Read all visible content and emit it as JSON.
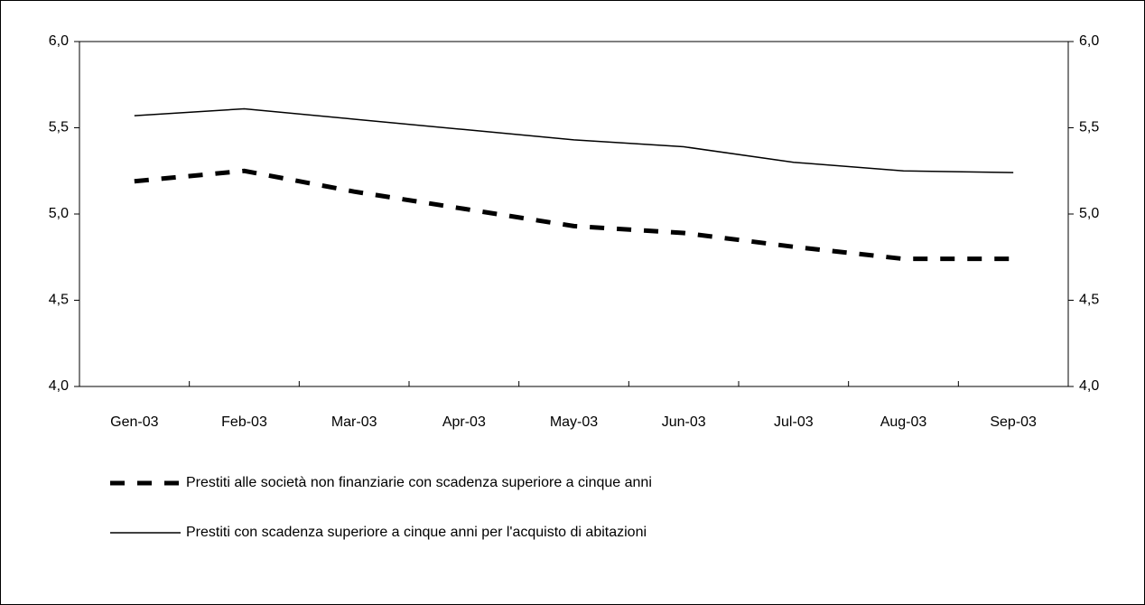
{
  "chart_data": {
    "type": "line",
    "categories": [
      "Gen-03",
      "Feb-03",
      "Mar-03",
      "Apr-03",
      "May-03",
      "Jun-03",
      "Jul-03",
      "Aug-03",
      "Sep-03"
    ],
    "series": [
      {
        "name": "Prestiti alle società non finanziarie con scadenza superiore a cinque anni",
        "color": "#000000",
        "dash": true,
        "values": [
          5.19,
          5.25,
          5.13,
          5.03,
          4.93,
          4.89,
          4.81,
          4.74,
          4.74
        ]
      },
      {
        "name": "Prestiti con scadenza superiore a cinque anni per l'acquisto di abitazioni",
        "color": "#000000",
        "dash": false,
        "values": [
          5.57,
          5.61,
          5.55,
          5.49,
          5.43,
          5.39,
          5.3,
          5.25,
          5.24
        ]
      }
    ],
    "ylim": [
      4,
      6
    ],
    "yticks": [
      {
        "value": 4,
        "label": "4,0"
      },
      {
        "value": 4.5,
        "label": "4,5"
      },
      {
        "value": 5,
        "label": "5,0"
      },
      {
        "value": 5.5,
        "label": "5,5"
      },
      {
        "value": 6,
        "label": "6,0"
      }
    ],
    "y2lim": [
      4,
      6
    ],
    "y2ticks": [
      {
        "value": 4,
        "label": "4,0"
      },
      {
        "value": 4.5,
        "label": "4,5"
      },
      {
        "value": 5,
        "label": "5,0"
      },
      {
        "value": 5.5,
        "label": "5,5"
      },
      {
        "value": 6,
        "label": "6,0"
      }
    ],
    "legend": "bottom-left"
  }
}
